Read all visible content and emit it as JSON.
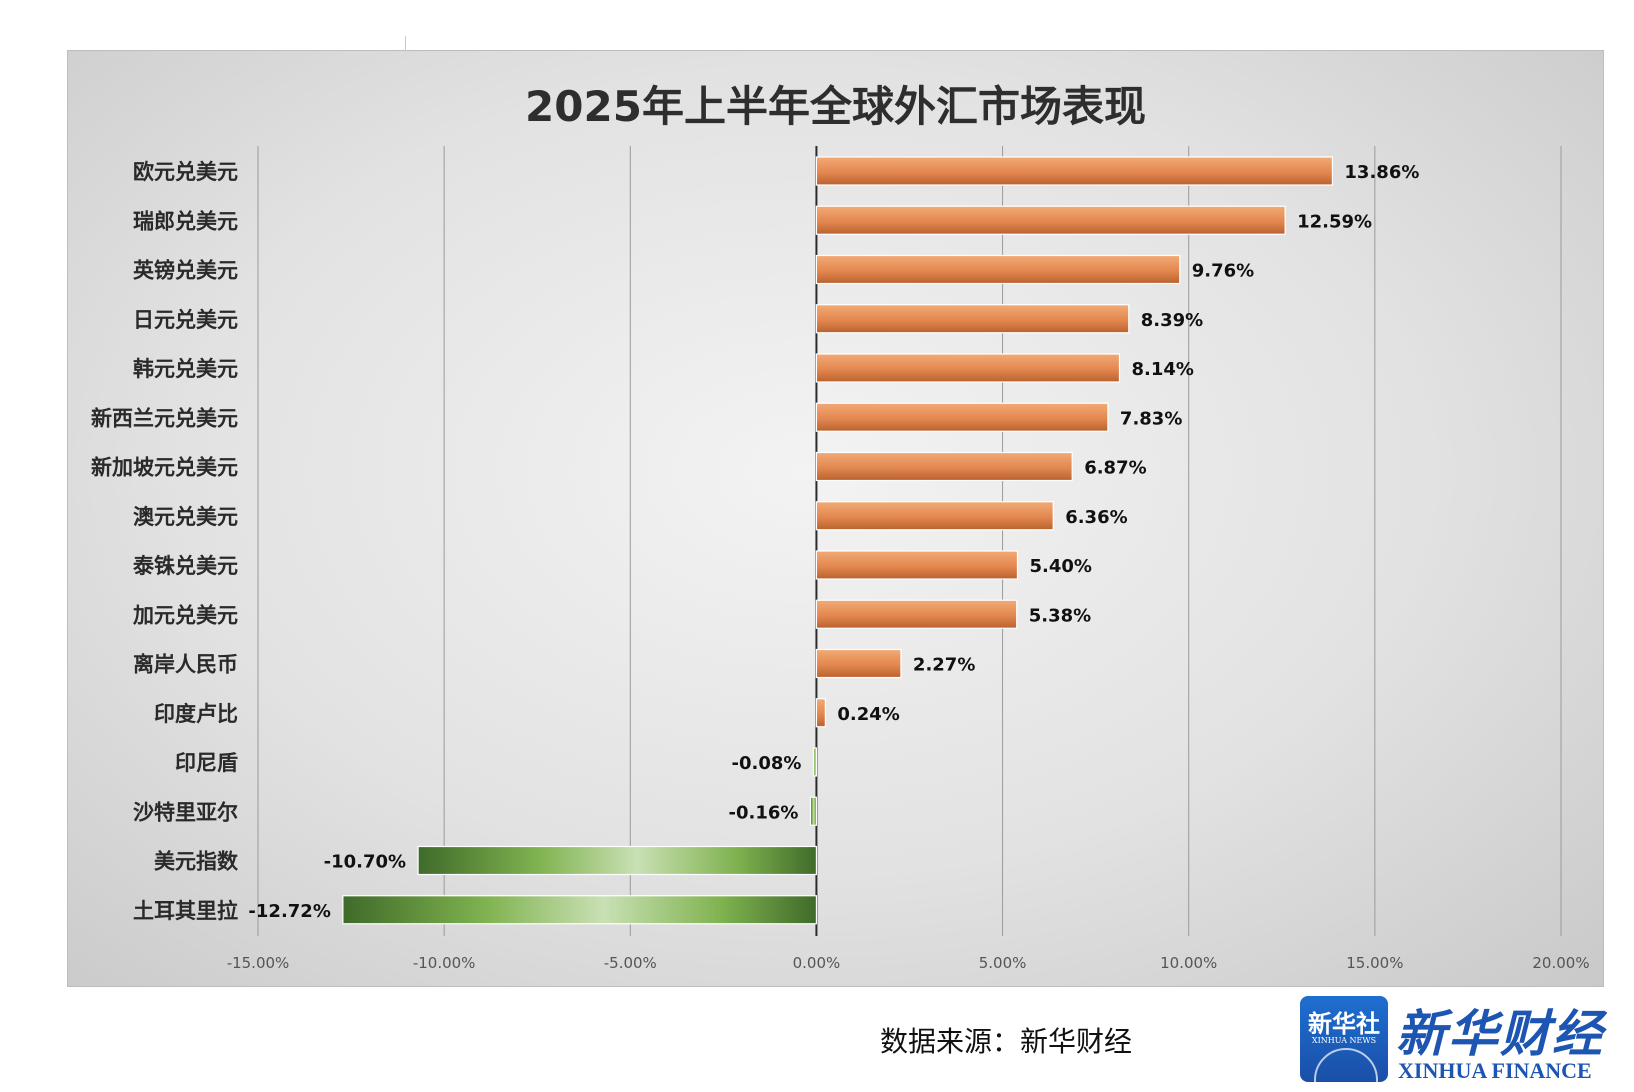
{
  "chart_data": {
    "type": "bar",
    "orientation": "horizontal",
    "title": "2025年上半年全球外汇市场表现",
    "xlabel": "",
    "ylabel": "",
    "xlim": [
      -0.15,
      0.2
    ],
    "xticks": [
      "-15.00%",
      "-10.00%",
      "-5.00%",
      "0.00%",
      "5.00%",
      "10.00%",
      "15.00%",
      "20.00%"
    ],
    "grid": "vertical",
    "categories": [
      "欧元兑美元",
      "瑞郎兑美元",
      "英镑兑美元",
      "日元兑美元",
      "韩元兑美元",
      "新西兰元兑美元",
      "新加坡元兑美元",
      "澳元兑美元",
      "泰铢兑美元",
      "加元兑美元",
      "离岸人民币",
      "印度卢比",
      "印尼盾",
      "沙特里亚尔",
      "美元指数",
      "土耳其里拉"
    ],
    "values": [
      0.1386,
      0.1259,
      0.0976,
      0.0839,
      0.0814,
      0.0783,
      0.0687,
      0.0636,
      0.054,
      0.0538,
      0.0227,
      0.0024,
      -0.0008,
      -0.0016,
      -0.107,
      -0.1272
    ],
    "value_labels": [
      "13.86%",
      "12.59%",
      "9.76%",
      "8.39%",
      "8.14%",
      "7.83%",
      "6.87%",
      "6.36%",
      "5.40%",
      "5.38%",
      "2.27%",
      "0.24%",
      "-0.08%",
      "-0.16%",
      "-10.70%",
      "-12.72%"
    ],
    "colors": {
      "positive": "#e3874f",
      "negative": "#6ea446"
    }
  },
  "footer": {
    "source": "数据来源：新华财经"
  },
  "logo": {
    "badge_cn": "新华社",
    "badge_en": "XINHUA NEWS",
    "brand_cn": "新华财经",
    "brand_en": "XINHUA FINANCE"
  }
}
